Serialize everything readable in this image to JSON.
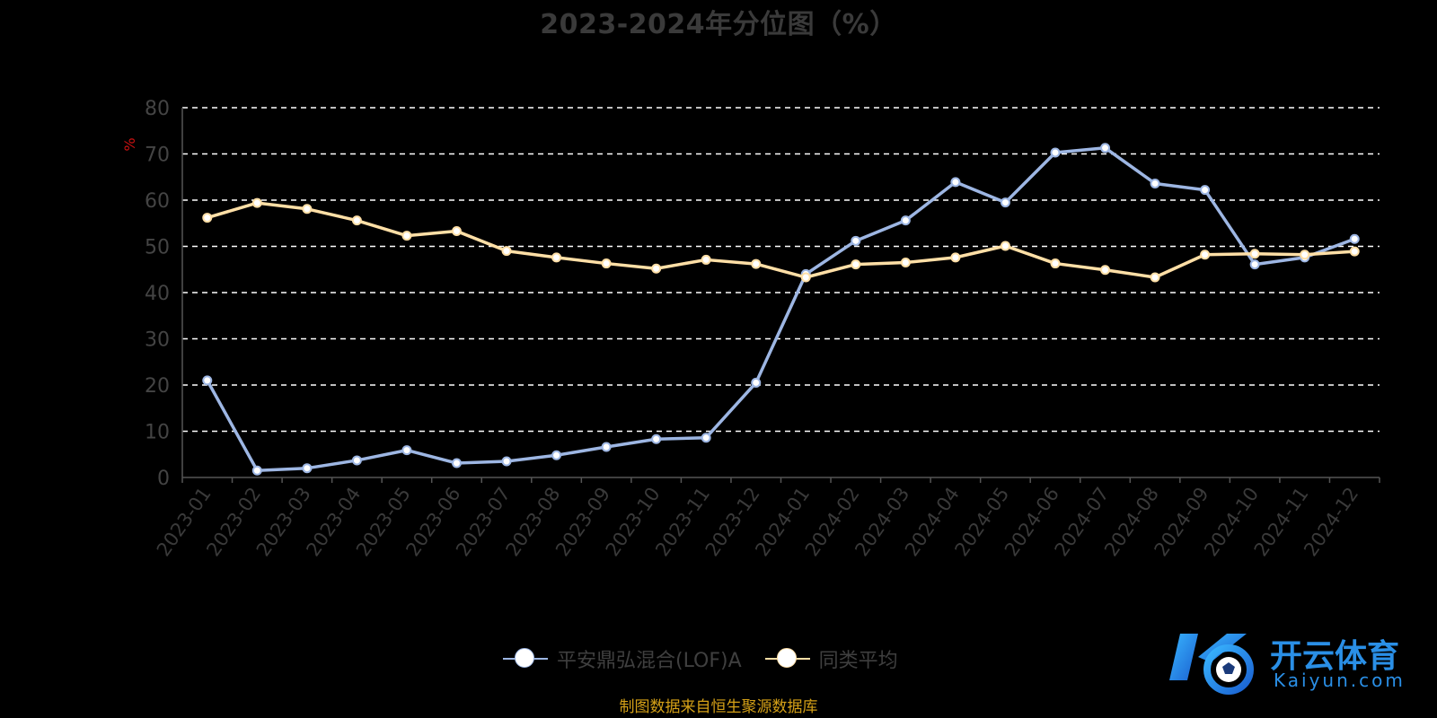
{
  "title": "2023-2024年分位图（%）",
  "source_text": "制图数据来自恒生聚源数据库",
  "watermark": {
    "cn": "开云体育",
    "en": "Kaiyun.com",
    "color": "#2a8fe6"
  },
  "chart_data": {
    "type": "line",
    "ylabel": "%",
    "ylim": [
      0,
      80
    ],
    "yticks": [
      0,
      10,
      20,
      30,
      40,
      50,
      60,
      70,
      80
    ],
    "grid": true,
    "legend_position": "bottom",
    "categories": [
      "2023-01",
      "2023-02",
      "2023-03",
      "2023-04",
      "2023-05",
      "2023-06",
      "2023-07",
      "2023-08",
      "2023-09",
      "2023-10",
      "2023-11",
      "2023-12",
      "2024-01",
      "2024-02",
      "2024-03",
      "2024-04",
      "2024-05",
      "2024-06",
      "2024-07",
      "2024-08",
      "2024-09",
      "2024-10",
      "2024-11",
      "2024-12"
    ],
    "series": [
      {
        "name": "平安鼎弘混合(LOF)A",
        "color": "#9db6e3",
        "values": [
          21,
          1.5,
          2,
          3.7,
          5.9,
          3.1,
          3.5,
          4.8,
          6.6,
          8.3,
          8.6,
          20.5,
          44,
          51.2,
          55.6,
          63.9,
          59.5,
          70.3,
          71.3,
          63.6,
          62.2,
          46.1,
          47.6,
          51.6
        ]
      },
      {
        "name": "同类平均",
        "color": "#ffdfa6",
        "values": [
          56.2,
          59.4,
          58.1,
          55.6,
          52.3,
          53.3,
          49,
          47.6,
          46.3,
          45.2,
          47.1,
          46.2,
          43.3,
          46.1,
          46.5,
          47.6,
          50.1,
          46.3,
          44.9,
          43.3,
          48.2,
          48.4,
          48.2,
          48.9
        ]
      }
    ]
  }
}
